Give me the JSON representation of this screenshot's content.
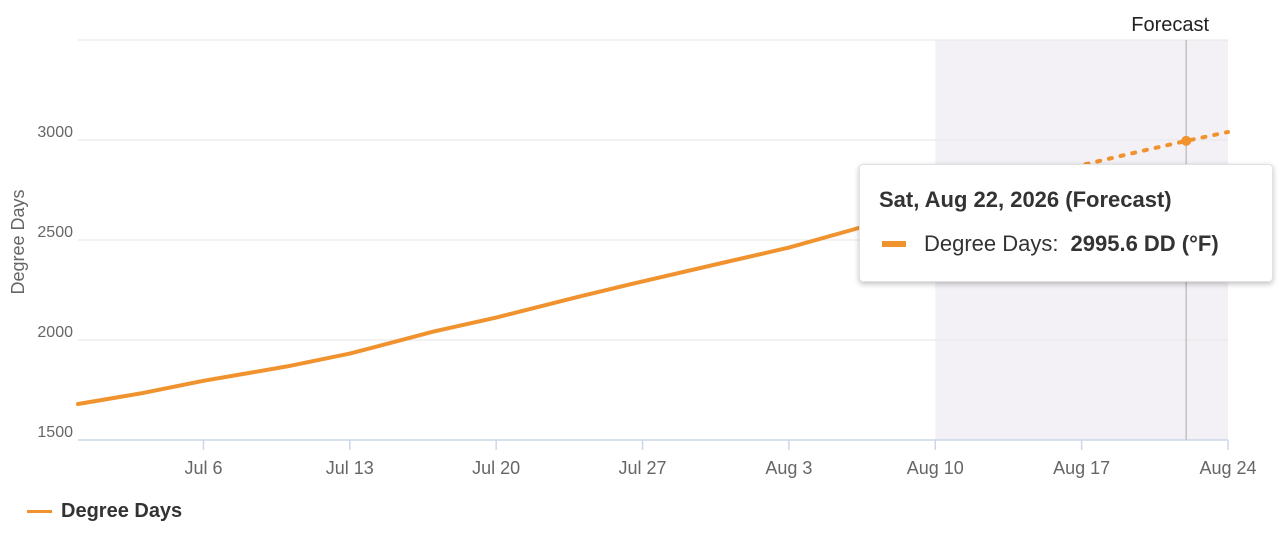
{
  "chart_data": {
    "type": "line",
    "ylabel": "Degree Days",
    "ylim": [
      1500,
      3500
    ],
    "yticks": [
      1500,
      2000,
      2500,
      3000
    ],
    "xlim": [
      "2026-06-30",
      "2026-08-24"
    ],
    "xticks": [
      {
        "date": "2026-07-06",
        "label": "Jul 6"
      },
      {
        "date": "2026-07-13",
        "label": "Jul 13"
      },
      {
        "date": "2026-07-20",
        "label": "Jul 20"
      },
      {
        "date": "2026-07-27",
        "label": "Jul 27"
      },
      {
        "date": "2026-08-03",
        "label": "Aug 3"
      },
      {
        "date": "2026-08-10",
        "label": "Aug 10"
      },
      {
        "date": "2026-08-17",
        "label": "Aug 17"
      },
      {
        "date": "2026-08-24",
        "label": "Aug 24"
      }
    ],
    "forecast": {
      "label": "Forecast",
      "start": "2026-08-10",
      "end": "2026-08-24"
    },
    "series": [
      {
        "name": "Degree Days",
        "color": "#f0922e",
        "observed": [
          {
            "x": "2026-06-30",
            "y": 1680
          },
          {
            "x": "2026-07-03",
            "y": 1733
          },
          {
            "x": "2026-07-06",
            "y": 1796
          },
          {
            "x": "2026-07-10",
            "y": 1868
          },
          {
            "x": "2026-07-13",
            "y": 1932
          },
          {
            "x": "2026-07-17",
            "y": 2042
          },
          {
            "x": "2026-07-20",
            "y": 2112
          },
          {
            "x": "2026-07-24",
            "y": 2218
          },
          {
            "x": "2026-07-27",
            "y": 2293
          },
          {
            "x": "2026-07-31",
            "y": 2390
          },
          {
            "x": "2026-08-03",
            "y": 2462
          },
          {
            "x": "2026-08-06",
            "y": 2550
          },
          {
            "x": "2026-08-10",
            "y": 2670
          }
        ],
        "forecast": [
          {
            "x": "2026-08-10",
            "y": 2670
          },
          {
            "x": "2026-08-15",
            "y": 2825
          },
          {
            "x": "2026-08-20",
            "y": 2948
          },
          {
            "x": "2026-08-22",
            "y": 2995.6
          },
          {
            "x": "2026-08-24",
            "y": 3040
          }
        ]
      }
    ],
    "highlight": {
      "x": "2026-08-22",
      "y": 2995.6
    }
  },
  "tooltip": {
    "title": "Sat, Aug 22, 2026 (Forecast)",
    "series_label": "Degree Days:",
    "value": "2995.6 DD (°F)"
  },
  "legend": {
    "label": "Degree Days"
  }
}
